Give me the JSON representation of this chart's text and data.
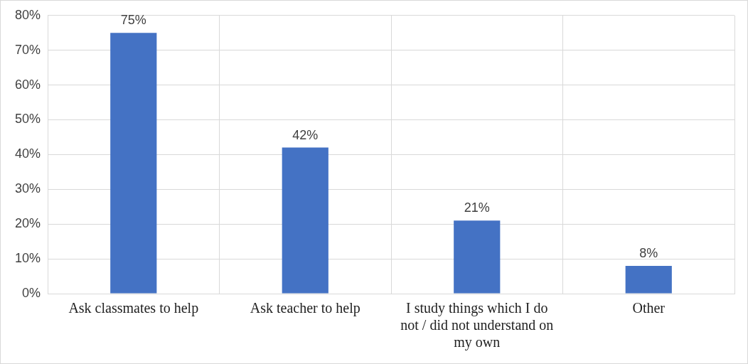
{
  "chart_data": {
    "type": "bar",
    "categories": [
      "Ask classmates to help",
      "Ask teacher to help",
      "I study things which I do not / did not understand on my own",
      "Other"
    ],
    "values": [
      75,
      42,
      21,
      8
    ],
    "value_labels": [
      "75%",
      "42%",
      "21%",
      "8%"
    ],
    "color": "#4472c4",
    "ylim": [
      0,
      80
    ],
    "yticks": [
      {
        "value": 0,
        "label": "0%"
      },
      {
        "value": 10,
        "label": "10%"
      },
      {
        "value": 20,
        "label": "20%"
      },
      {
        "value": 30,
        "label": "30%"
      },
      {
        "value": 40,
        "label": "40%"
      },
      {
        "value": 50,
        "label": "50%"
      },
      {
        "value": 60,
        "label": "60%"
      },
      {
        "value": 70,
        "label": "70%"
      },
      {
        "value": 80,
        "label": "80%"
      }
    ],
    "grid": true
  }
}
